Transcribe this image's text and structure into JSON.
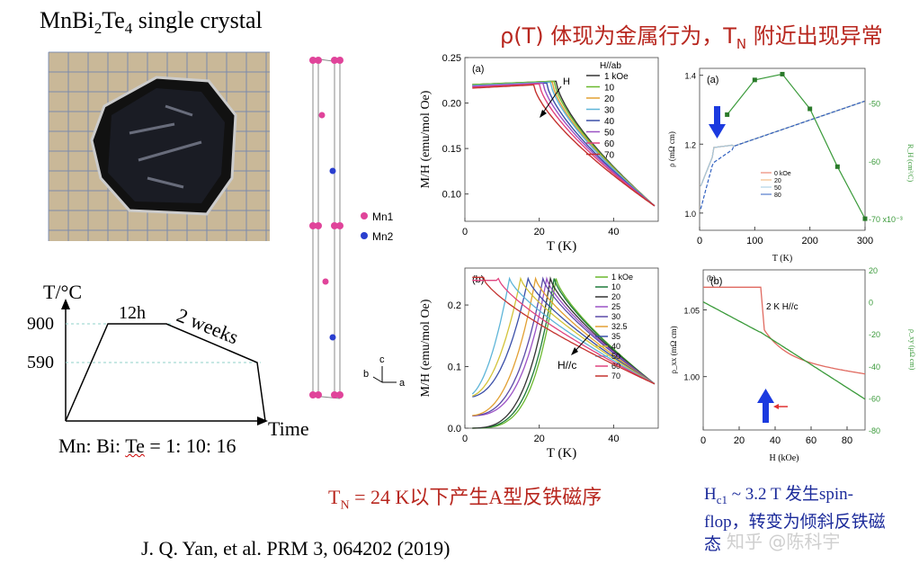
{
  "title": {
    "prefix": "MnBi",
    "sub1": "2",
    "mid": "Te",
    "sub2": "4",
    "suffix": " single crystal"
  },
  "headline": {
    "pre": "ρ(T) 体现为金属行为，T",
    "sub": "N",
    "post": " 附近出现异常"
  },
  "growth": {
    "y_label": "T/°C",
    "x_label": "Time",
    "t_high": "900",
    "t_low": "590",
    "hold": "12h",
    "cool": "2 weeks",
    "ratio_pre": "Mn: Bi: ",
    "ratio_wavy": "Te",
    "ratio_post": " = 1: 10: 16"
  },
  "lattice": {
    "mn1": "Mn1",
    "mn2": "Mn2",
    "axes": {
      "a": "a",
      "b": "b",
      "c": "c"
    }
  },
  "tn_note": {
    "pre": "T",
    "sub": "N",
    "post": " = 24 K以下产生A型反铁磁序"
  },
  "hc_note": {
    "pre": "H",
    "sub": "c1",
    "post": " ~ 3.2 T 发生spin-flop，转变为倾斜反铁磁态"
  },
  "reference": "J. Q. Yan, et al. PRM 3, 064202 (2019)",
  "watermark": "知乎 @陈科宇",
  "colors": {
    "red": "#b8261e",
    "blue": "#1b2a9a",
    "mn1": "#e0449a",
    "mn2": "#2a3fcf"
  },
  "chart_data": [
    {
      "type": "line",
      "panel": "(a)",
      "xlabel": "T (K)",
      "ylabel": "M/H (emu/mol Oe)",
      "xlim": [
        0,
        52
      ],
      "ylim": [
        0.07,
        0.25
      ],
      "xticks": [
        0,
        20,
        40
      ],
      "yticks": [
        0.1,
        0.15,
        0.2,
        0.25
      ],
      "legend_title": "H//ab",
      "annotation": "H",
      "series": [
        {
          "name": "1 kOe",
          "color": "#333333",
          "tn": 24.5,
          "peak": 0.224
        },
        {
          "name": "10",
          "color": "#6ab82e",
          "tn": 24,
          "peak": 0.224
        },
        {
          "name": "20",
          "color": "#e2a033",
          "tn": 23.5,
          "peak": 0.223
        },
        {
          "name": "30",
          "color": "#5eb5d8",
          "tn": 23,
          "peak": 0.223
        },
        {
          "name": "40",
          "color": "#3a4fa8",
          "tn": 22,
          "peak": 0.222
        },
        {
          "name": "50",
          "color": "#9b52c5",
          "tn": 21,
          "peak": 0.222
        },
        {
          "name": "60",
          "color": "#e0447f",
          "tn": 20,
          "peak": 0.221
        },
        {
          "name": "70",
          "color": "#c4322f",
          "tn": 18.5,
          "peak": 0.22
        }
      ]
    },
    {
      "type": "line",
      "panel": "(b)",
      "xlabel": "T (K)",
      "ylabel": "M/H (emu/mol Oe)",
      "xlim": [
        0,
        52
      ],
      "ylim": [
        0,
        0.26
      ],
      "xticks": [
        0,
        20,
        40
      ],
      "yticks": [
        0.0,
        0.1,
        0.2
      ],
      "annotation": "H//c",
      "series": [
        {
          "name": "1 kOe",
          "color": "#6ab82e",
          "tn": 24.5
        },
        {
          "name": "10",
          "color": "#1f7a3a",
          "tn": 24
        },
        {
          "name": "20",
          "color": "#333333",
          "tn": 23
        },
        {
          "name": "25",
          "color": "#9b52c5",
          "tn": 22
        },
        {
          "name": "30",
          "color": "#5b4aa8",
          "tn": 21
        },
        {
          "name": "32.5",
          "color": "#e2a033",
          "tn": 19
        },
        {
          "name": "35",
          "color": "#3a4fa8",
          "tn": 17
        },
        {
          "name": "40",
          "color": "#d3c33a",
          "tn": 15
        },
        {
          "name": "50",
          "color": "#5eb5d8",
          "tn": 12
        },
        {
          "name": "60",
          "color": "#e0447f",
          "tn": 9
        },
        {
          "name": "70",
          "color": "#c4322f",
          "tn": 5
        }
      ]
    },
    {
      "type": "line",
      "panel": "(a)",
      "xlabel": "T (K)",
      "ylabel": "ρ (mΩ cm)",
      "ylabel_right": "R_H (cm³/C)",
      "xlim": [
        0,
        300
      ],
      "ylim": [
        0.95,
        1.42
      ],
      "xticks": [
        0,
        100,
        200,
        300
      ],
      "yticks": [
        1.0,
        1.2,
        1.4
      ],
      "yticks_right": [
        "-50",
        "-60",
        "-70 x10⁻³"
      ],
      "legend": [
        "0 kOe",
        "20",
        "50",
        "80"
      ],
      "hall": {
        "T": [
          50,
          100,
          150,
          200,
          250,
          300
        ],
        "RH": [
          -52,
          -46,
          -45,
          -51,
          -61,
          -70
        ]
      }
    },
    {
      "type": "line",
      "panel": "(b)",
      "xlabel": "H (kOe)",
      "ylabel": "ρ_xx (mΩ cm)",
      "ylabel_right": "ρ_xy (μΩ cm)",
      "annotation": "2 K H//c",
      "xlim": [
        0,
        90
      ],
      "ylim": [
        0.96,
        1.08
      ],
      "xticks": [
        0,
        20,
        40,
        60,
        80
      ],
      "yticks": [
        1.0,
        1.05
      ],
      "yticks_right": [
        "20",
        "0",
        "-20",
        "-40",
        "-60",
        "-80"
      ],
      "spin_flop_field": 32
    }
  ]
}
